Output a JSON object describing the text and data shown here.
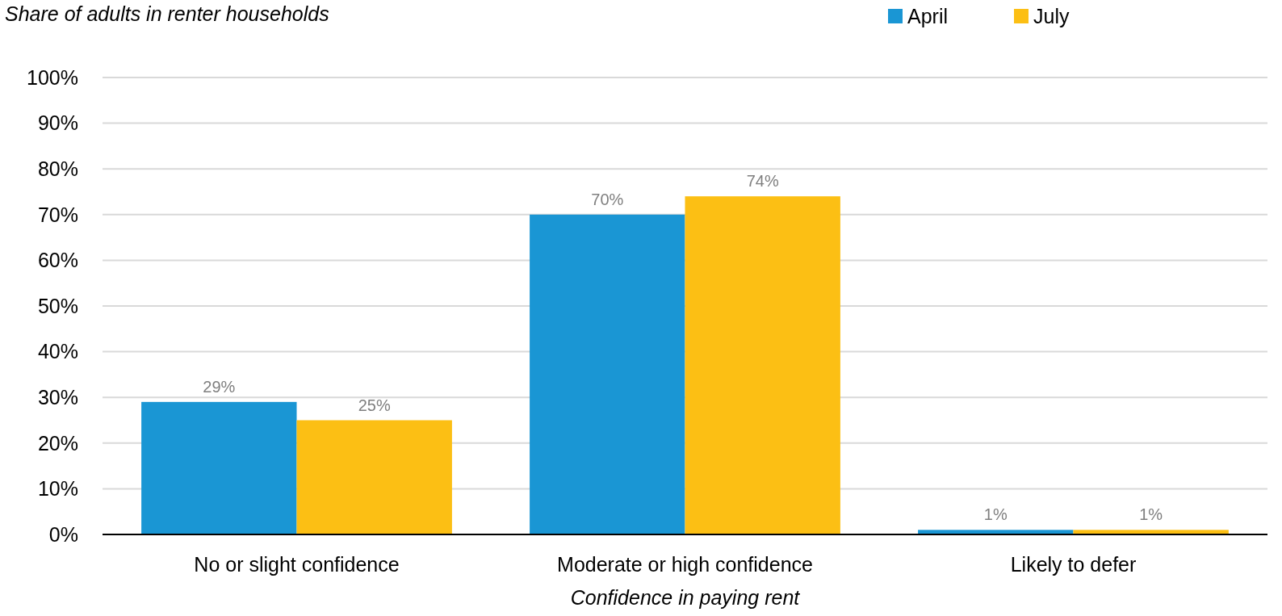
{
  "chart_data": {
    "type": "bar",
    "ylabel": "Share of adults in renter households",
    "xlabel": "Confidence in paying rent",
    "categories": [
      "No or slight confidence",
      "Moderate or high confidence",
      "Likely to defer"
    ],
    "series": [
      {
        "name": "April",
        "color": "#1a96d4",
        "values": [
          29,
          70,
          1
        ],
        "value_labels": [
          "29%",
          "70%",
          "1%"
        ]
      },
      {
        "name": "July",
        "color": "#fcbf14",
        "values": [
          25,
          74,
          1
        ],
        "value_labels": [
          "25%",
          "74%",
          "1%"
        ]
      }
    ],
    "ylim": [
      0,
      100
    ],
    "yticks": [
      {
        "value": 0,
        "label": "0%"
      },
      {
        "value": 10,
        "label": "10%"
      },
      {
        "value": 20,
        "label": "20%"
      },
      {
        "value": 30,
        "label": "30%"
      },
      {
        "value": 40,
        "label": "40%"
      },
      {
        "value": 50,
        "label": "50%"
      },
      {
        "value": 60,
        "label": "60%"
      },
      {
        "value": 70,
        "label": "70%"
      },
      {
        "value": 80,
        "label": "80%"
      },
      {
        "value": 90,
        "label": "90%"
      },
      {
        "value": 100,
        "label": "100%"
      }
    ],
    "grid": "y",
    "legend": "top right"
  }
}
